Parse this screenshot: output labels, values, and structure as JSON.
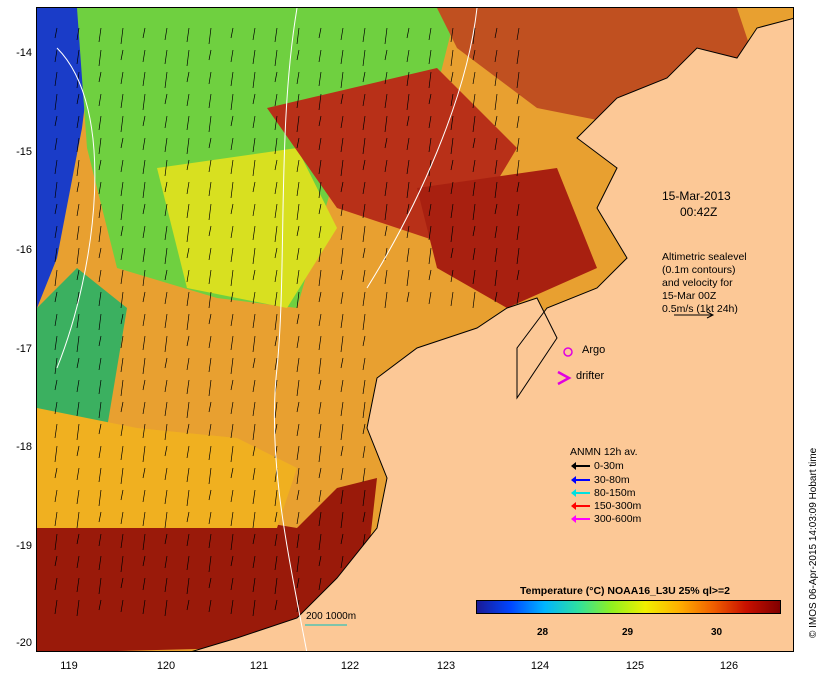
{
  "map": {
    "date": "15-Mar-2013",
    "time": "00:42Z",
    "altimetry_note": [
      "Altimetric sealevel",
      "(0.1m contours)",
      "and velocity for",
      "15-Mar 00Z",
      "0.5m/s (1kt 24h)"
    ],
    "argo_label": "Argo",
    "drifter_label": "drifter",
    "anmn_title": "ANMN 12h av.",
    "anmn_legend": [
      {
        "label": "0-30m",
        "color": "#000000"
      },
      {
        "label": "30-80m",
        "color": "#0000ff"
      },
      {
        "label": "80-150m",
        "color": "#00e0e0"
      },
      {
        "label": "150-300m",
        "color": "#ff0000"
      },
      {
        "label": "300-600m",
        "color": "#ff00ff"
      }
    ],
    "isobath_label": "200  1000m",
    "colorbar_title": "Temperature (°C) NOAA16_L3U 25% ql>=2",
    "colorbar_ticks": [
      "28",
      "29",
      "30"
    ],
    "lat_ticks": [
      "-14",
      "-15",
      "-16",
      "-17",
      "-18",
      "-19",
      "-20"
    ],
    "lon_ticks": [
      "119",
      "120",
      "121",
      "122",
      "123",
      "124",
      "125",
      "126"
    ],
    "credit": "© IMOS 06-Apr-2015 14:03:09 Hobart time",
    "colors": {
      "land": "#fcc896",
      "sst_cool": "#1a3cc8",
      "sst_mid": "#7ad83a",
      "sst_warm": "#e08a20",
      "sst_hot": "#a01808"
    }
  }
}
